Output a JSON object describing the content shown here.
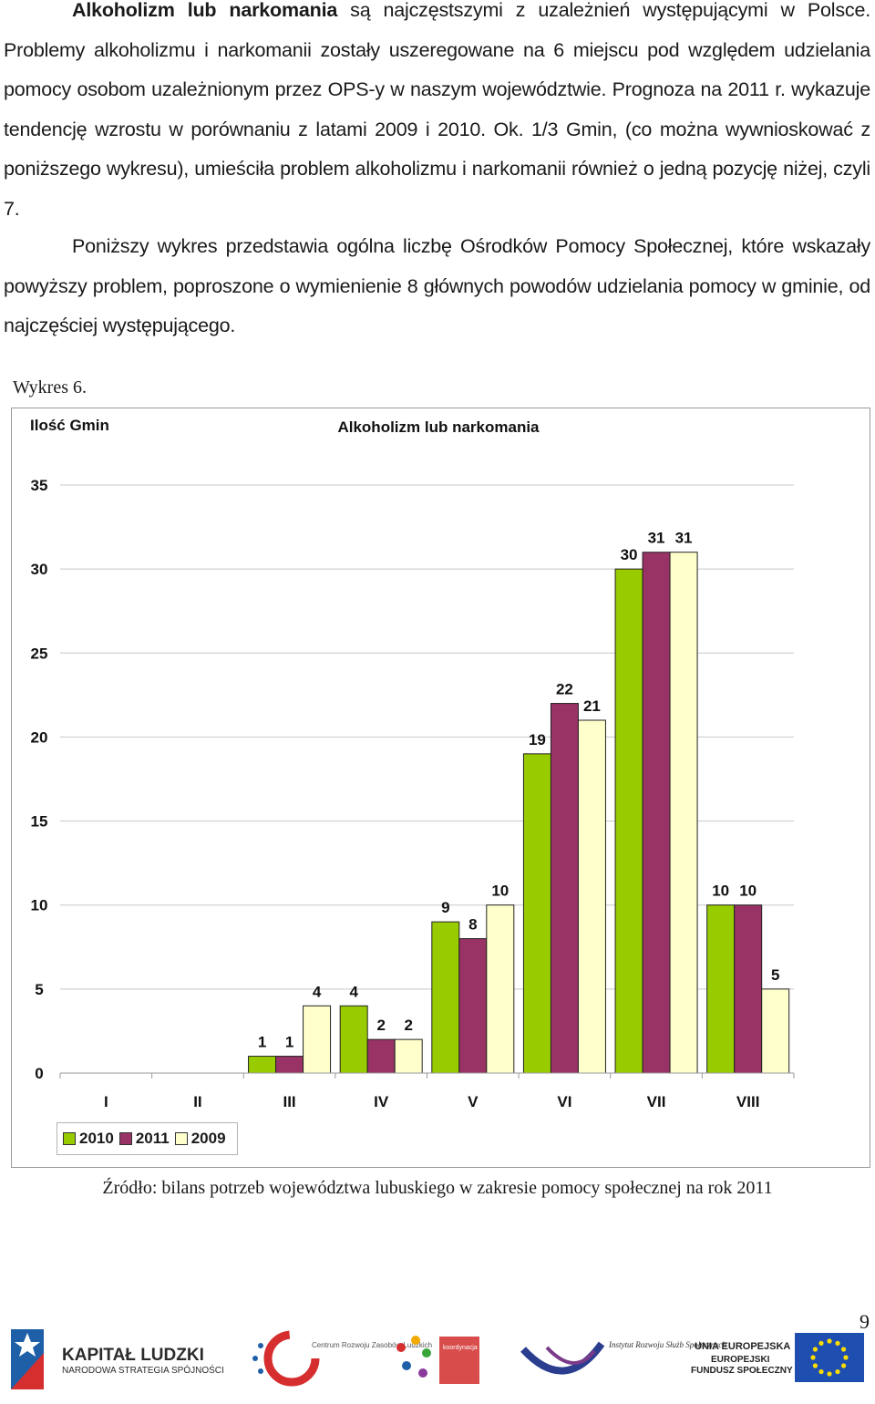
{
  "paragraphs": {
    "p1_bold": "Alkoholizm lub narkomania",
    "p1_rest": " są najczęstszymi z uzależnień występującymi w Polsce. Problemy alkoholizmu i narkomanii zostały uszeregowane na 6 miejscu pod względem udzielania pomocy osobom uzależnionym przez OPS-y w naszym województwie. Prognoza na 2011 r. wykazuje tendencję wzrostu w porównaniu z latami 2009 i 2010. Ok. 1/3 Gmin, (co można wywnioskować z poniższego wykresu), umieściła problem alkoholizmu i narkomanii również o jedną pozycję niżej, czyli 7.",
    "p2": "Poniższy wykres przedstawia ogólna liczbę Ośrodków Pomocy Społecznej, które wskazały powyższy problem, poproszone o wymienienie 8 głównych powodów udzielania pomocy w gminie, od najczęściej występującego."
  },
  "chart_caption": "Wykres 6.",
  "source_note": "Źródło: bilans potrzeb województwa lubuskiego w zakresie pomocy społecznej na rok 2011",
  "page_number": "9",
  "chart_data": {
    "type": "bar",
    "title": "Alkoholizm lub narkomania",
    "ylabel": "Ilość Gmin",
    "xlabel": "",
    "categories": [
      "I",
      "II",
      "III",
      "IV",
      "V",
      "VI",
      "VII",
      "VIII"
    ],
    "ylim": [
      0,
      35
    ],
    "yticks": [
      0,
      5,
      10,
      15,
      20,
      25,
      30,
      35
    ],
    "grid": true,
    "legend_position": "bottom-left",
    "series": [
      {
        "name": "2010",
        "color": "#99cc00",
        "values": [
          0,
          0,
          1,
          4,
          9,
          19,
          30,
          10
        ]
      },
      {
        "name": "2011",
        "color": "#993366",
        "values": [
          0,
          0,
          1,
          2,
          8,
          22,
          31,
          10
        ]
      },
      {
        "name": "2009",
        "color": "#ffffcc",
        "values": [
          0,
          0,
          4,
          2,
          10,
          21,
          31,
          5
        ]
      }
    ],
    "data_labels": [
      [
        null,
        null,
        "1",
        "4",
        "9",
        "19",
        "30",
        "10"
      ],
      [
        null,
        null,
        "1",
        "2",
        "8",
        "22",
        "31",
        "10"
      ],
      [
        null,
        null,
        "4",
        "2",
        "10",
        "21",
        "31",
        "5"
      ]
    ]
  },
  "logos": {
    "kapital_ludzki_title": "KAPITAŁ LUDZKI",
    "kapital_ludzki_sub": "NARODOWA STRATEGIA SPÓJNOŚCI",
    "centrum_text": "Centrum Rozwoju Zasobów Ludzkich",
    "koordynacja_text": "koordynacja na rzecz aktywnej integracji",
    "instytut_text": "Instytut Rozwoju Służb Społecznych",
    "eu_line1": "UNIA EUROPEJSKA",
    "eu_line2": "EUROPEJSKI",
    "eu_line3": "FUNDUSZ SPOŁECZNY"
  }
}
